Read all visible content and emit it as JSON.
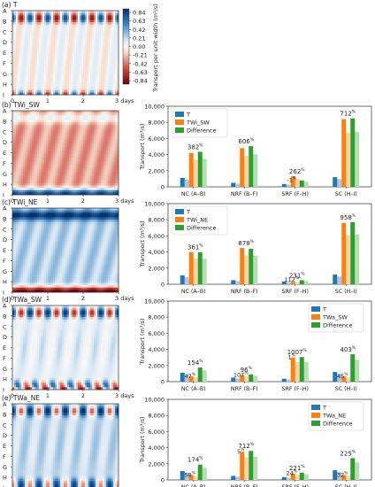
{
  "colorbar": {
    "ticks": [
      "0.84",
      "0.63",
      "0.42",
      "0.21",
      "0.00",
      "-0.21",
      "-0.42",
      "-0.63",
      "-0.84"
    ],
    "label": "Transport per unit width (m²/s)"
  },
  "y_tick_letters": [
    "A",
    "B",
    "C",
    "D",
    "E",
    "F",
    "G",
    "H",
    "I"
  ],
  "x_tick_labels": [
    "0",
    "1",
    "2",
    "3 days"
  ],
  "panels": [
    {
      "label": "(a) T",
      "pattern": "tide"
    },
    {
      "label": "(b) TWi_SW",
      "pattern": "sw"
    },
    {
      "label": "(c) TWi_NE",
      "pattern": "ne"
    },
    {
      "label": "(d) TWa_SW",
      "pattern": "twa_sw"
    },
    {
      "label": "(e) TWa_NE",
      "pattern": "twa_ne"
    }
  ],
  "bar_axis": {
    "ylabel": "Transport (m³/s)",
    "yticks": [
      "0",
      "2,000",
      "4,000",
      "6,000",
      "8,000",
      "10,000"
    ],
    "ylim": [
      0,
      10000
    ]
  },
  "chart_data": [
    {
      "type": "bar",
      "panel": "b",
      "categories": [
        "NC (A–B)",
        "NRF (B–F)",
        "SRF (F–H)",
        "SC (H–I)"
      ],
      "legend_position": "top-left",
      "series": [
        {
          "name": "T",
          "color": "#1f77b4",
          "values": [
            1100,
            500,
            350,
            1200
          ]
        },
        {
          "name": "TWi_SW",
          "color": "#ff7f0e",
          "values": [
            4200,
            4800,
            1300,
            8400
          ]
        },
        {
          "name": "Difference",
          "color": "#2ca02c",
          "values": [
            4350,
            5050,
            800,
            8500
          ]
        }
      ],
      "labels": [
        "382",
        "606",
        "262",
        "712"
      ],
      "labels2": [
        "",
        "",
        "-1",
        ""
      ],
      "unit": "%"
    },
    {
      "type": "bar",
      "panel": "c",
      "categories": [
        "NC (A–B)",
        "NRF (B–F)",
        "SRF (F–H)",
        "SC (H–I)"
      ],
      "legend_position": "top-left",
      "series": [
        {
          "name": "T",
          "color": "#1f77b4",
          "values": [
            1100,
            500,
            350,
            1200
          ]
        },
        {
          "name": "TWi_NE",
          "color": "#ff7f0e",
          "values": [
            4000,
            4500,
            300,
            7600
          ]
        },
        {
          "name": "Difference",
          "color": "#2ca02c",
          "values": [
            3970,
            4400,
            500,
            7700
          ]
        }
      ],
      "labels": [
        "361",
        "878",
        "231",
        "958"
      ],
      "labels2": [
        "",
        "",
        "112",
        ""
      ],
      "unit": "%"
    },
    {
      "type": "bar",
      "panel": "d",
      "categories": [
        "NC (A–B)",
        "NRF (B–F)",
        "SRF (F–H)",
        "SC (H–I)"
      ],
      "legend_position": "top-right",
      "series": [
        {
          "name": "T",
          "color": "#1f77b4",
          "values": [
            1100,
            500,
            350,
            1200
          ]
        },
        {
          "name": "TWa_SW",
          "color": "#ff7f0e",
          "values": [
            650,
            800,
            3000,
            650
          ]
        },
        {
          "name": "Difference",
          "color": "#2ca02c",
          "values": [
            1750,
            900,
            3050,
            3400
          ]
        }
      ],
      "labels": [
        "154",
        "96",
        "1007",
        "403"
      ],
      "labels2": [
        "47",
        "107",
        "1",
        "45"
      ],
      "unit": "%"
    },
    {
      "type": "bar",
      "panel": "e",
      "categories": [
        "NC (A–B)",
        "NRF (B–F)",
        "SRF (F–H)",
        "SC (H–I)"
      ],
      "legend_position": "top-right",
      "series": [
        {
          "name": "T",
          "color": "#1f77b4",
          "values": [
            1100,
            500,
            350,
            1200
          ]
        },
        {
          "name": "TWa_NE",
          "color": "#ff7f0e",
          "values": [
            600,
            3500,
            800,
            600
          ]
        },
        {
          "name": "Difference",
          "color": "#2ca02c",
          "values": [
            1900,
            3600,
            900,
            2700
          ]
        }
      ],
      "labels": [
        "174",
        "712",
        "221",
        "225"
      ],
      "labels2": [
        "58",
        "5",
        "24",
        "32"
      ],
      "unit": "%"
    }
  ]
}
